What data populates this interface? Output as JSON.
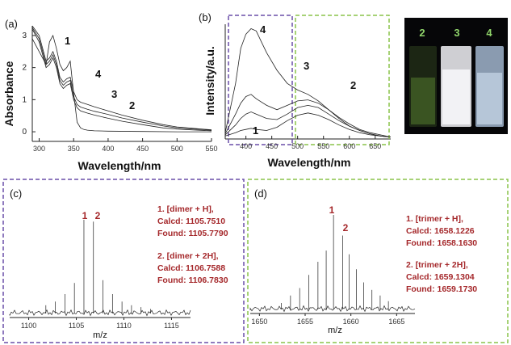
{
  "colors": {
    "box_purple": "#6a4fa8",
    "box_green": "#8ac34a",
    "annotation": "#a5282b",
    "vial_label": "#8fd36a"
  },
  "panel_labels": {
    "a": "(a)",
    "b": "(b)",
    "c": "(c)",
    "d": "(d)"
  },
  "vial_labels": [
    "2",
    "3",
    "4"
  ],
  "chart_data": [
    {
      "panel": "(a)",
      "type": "line",
      "xlabel": "Wavelength/nm",
      "ylabel": "Absorbance",
      "xlim": [
        290,
        550
      ],
      "ylim": [
        -0.3,
        3.3
      ],
      "x_ticks": [
        300,
        350,
        400,
        450,
        500,
        550
      ],
      "y_ticks": [
        0,
        1,
        2,
        3
      ],
      "curve_labels": [
        "1",
        "4",
        "3",
        "2"
      ],
      "series": [
        {
          "label": "1",
          "x": [
            290,
            300,
            310,
            315,
            320,
            325,
            330,
            335,
            340,
            345,
            350,
            355,
            360,
            365,
            370,
            380,
            400,
            450,
            500,
            550
          ],
          "y": [
            2.9,
            2.5,
            2.1,
            2.8,
            3.0,
            2.6,
            2.1,
            1.9,
            2.0,
            2.2,
            1.2,
            0.3,
            0.12,
            0.07,
            0.05,
            0.03,
            0.02,
            0.01,
            0.0,
            0.0
          ]
        },
        {
          "label": "2",
          "x": [
            290,
            300,
            310,
            315,
            320,
            325,
            330,
            335,
            340,
            345,
            350,
            355,
            360,
            370,
            380,
            400,
            420,
            450,
            480,
            500,
            550
          ],
          "y": [
            3.2,
            2.8,
            2.0,
            2.1,
            2.3,
            2.0,
            1.5,
            1.35,
            1.45,
            1.5,
            1.0,
            0.75,
            0.65,
            0.58,
            0.52,
            0.42,
            0.33,
            0.22,
            0.12,
            0.08,
            0.03
          ]
        },
        {
          "label": "3",
          "x": [
            290,
            300,
            310,
            315,
            320,
            325,
            330,
            335,
            340,
            345,
            350,
            355,
            360,
            370,
            380,
            400,
            420,
            450,
            480,
            500,
            550
          ],
          "y": [
            3.25,
            2.9,
            2.1,
            2.2,
            2.4,
            2.1,
            1.6,
            1.45,
            1.55,
            1.6,
            1.1,
            0.85,
            0.77,
            0.7,
            0.64,
            0.54,
            0.43,
            0.3,
            0.18,
            0.12,
            0.05
          ]
        },
        {
          "label": "4",
          "x": [
            290,
            300,
            310,
            315,
            320,
            325,
            330,
            335,
            340,
            345,
            350,
            355,
            360,
            370,
            380,
            400,
            420,
            450,
            480,
            500,
            550
          ],
          "y": [
            3.3,
            3.0,
            2.2,
            2.3,
            2.5,
            2.2,
            1.7,
            1.55,
            1.65,
            1.7,
            1.25,
            1.0,
            0.92,
            0.85,
            0.78,
            0.65,
            0.52,
            0.36,
            0.22,
            0.15,
            0.06
          ]
        }
      ]
    },
    {
      "panel": "(b)",
      "type": "line",
      "xlabel": "Wavelength/nm",
      "ylabel": "Intensity/a.u.",
      "xlim": [
        360,
        680
      ],
      "ylim": [
        0,
        1.1
      ],
      "x_ticks": [
        400,
        450,
        500,
        550,
        600,
        650
      ],
      "curve_labels": [
        "4",
        "3",
        "2",
        "1"
      ],
      "series": [
        {
          "label": "1",
          "x": [
            360,
            380,
            390,
            400,
            410,
            420,
            440,
            460,
            480,
            500,
            520,
            540,
            560,
            580,
            600,
            620,
            640,
            660,
            680
          ],
          "y": [
            0.02,
            0.05,
            0.07,
            0.08,
            0.09,
            0.08,
            0.07,
            0.1,
            0.16,
            0.21,
            0.23,
            0.21,
            0.17,
            0.12,
            0.08,
            0.05,
            0.03,
            0.02,
            0.01
          ]
        },
        {
          "label": "2",
          "x": [
            360,
            380,
            390,
            400,
            410,
            420,
            440,
            460,
            480,
            500,
            520,
            540,
            560,
            580,
            600,
            620,
            640,
            660,
            680
          ],
          "y": [
            0.03,
            0.12,
            0.18,
            0.22,
            0.24,
            0.22,
            0.18,
            0.17,
            0.22,
            0.28,
            0.3,
            0.28,
            0.22,
            0.16,
            0.11,
            0.07,
            0.04,
            0.02,
            0.01
          ]
        },
        {
          "label": "3",
          "x": [
            360,
            380,
            390,
            400,
            410,
            420,
            440,
            460,
            480,
            500,
            520,
            540,
            560,
            580,
            600,
            620,
            640,
            660,
            680
          ],
          "y": [
            0.04,
            0.22,
            0.32,
            0.38,
            0.4,
            0.36,
            0.3,
            0.26,
            0.3,
            0.34,
            0.35,
            0.32,
            0.26,
            0.19,
            0.13,
            0.08,
            0.05,
            0.03,
            0.01
          ]
        },
        {
          "label": "4",
          "x": [
            360,
            380,
            390,
            400,
            410,
            420,
            430,
            440,
            460,
            480,
            500,
            520,
            540,
            560,
            580,
            600,
            620,
            640,
            660,
            680
          ],
          "y": [
            0.05,
            0.5,
            0.82,
            0.95,
            1.0,
            0.98,
            0.88,
            0.78,
            0.62,
            0.5,
            0.44,
            0.4,
            0.34,
            0.26,
            0.18,
            0.11,
            0.07,
            0.04,
            0.02,
            0.01
          ]
        }
      ]
    },
    {
      "panel": "(c)",
      "type": "bar",
      "xlabel": "m/z",
      "xlim": [
        1098,
        1117
      ],
      "x_ticks": [
        1100,
        1105,
        1110,
        1115
      ],
      "peak_labels": [
        "1",
        "2"
      ],
      "peaks_mz": [
        1101.8,
        1102.8,
        1103.8,
        1104.8,
        1105.8,
        1106.8,
        1107.8,
        1108.8,
        1109.8,
        1110.8,
        1111.8,
        1112.8
      ],
      "peaks_rel": [
        0.08,
        0.12,
        0.2,
        0.32,
        1.0,
        0.98,
        0.35,
        0.2,
        0.12,
        0.08,
        0.06,
        0.04
      ],
      "annotations": {
        "dimer_h": {
          "title": "1.      [dimer + H],",
          "calcd": "Calcd: 1105.7510",
          "found": "Found: 1105.7790"
        },
        "dimer_2h": {
          "title": "2.      [dimer + 2H],",
          "calcd": "Calcd: 1106.7588",
          "found": "Found: 1106.7830"
        }
      }
    },
    {
      "panel": "(d)",
      "type": "bar",
      "xlabel": "m/z",
      "xlim": [
        1649,
        1667
      ],
      "x_ticks": [
        1650,
        1655,
        1660,
        1665
      ],
      "peak_labels": [
        "1",
        "2"
      ],
      "peaks_mz": [
        1652.4,
        1653.4,
        1654.4,
        1655.4,
        1656.4,
        1657.3,
        1658.1,
        1659.1,
        1659.8,
        1660.6,
        1661.4,
        1662.3,
        1663.2,
        1664.1
      ],
      "peaks_rel": [
        0.06,
        0.14,
        0.22,
        0.36,
        0.5,
        0.62,
        1.0,
        0.78,
        0.58,
        0.42,
        0.28,
        0.2,
        0.14,
        0.08
      ],
      "annotations": {
        "trimer_h": {
          "title": "1.       [trimer + H],",
          "calcd": "Calcd: 1658.1226",
          "found": "Found: 1658.1630"
        },
        "trimer_2h": {
          "title": "2.      [trimer + 2H],",
          "calcd": "Calcd: 1659.1304",
          "found": "Found: 1659.1730"
        }
      }
    }
  ]
}
